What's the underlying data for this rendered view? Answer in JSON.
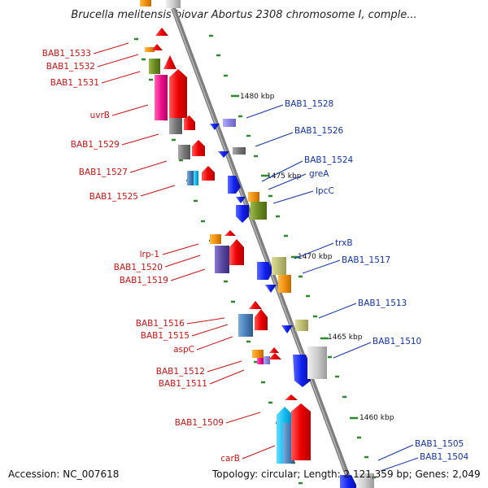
{
  "title": "Brucella melitensis biovar Abortus 2308 chromosome I, comple...",
  "footer": {
    "accession": "Accession: NC_007618",
    "topology": "Topology: circular; Length: 2,121,359 bp; Genes: 2,049"
  },
  "scale_labels": [
    "1480 kbp",
    "1475 kbp",
    "1470 kbp",
    "1465 kbp",
    "1460 kbp"
  ],
  "left_genes": [
    "BAB1_1533",
    "BAB1_1532",
    "BAB1_1531",
    "uvrB",
    "BAB1_1529",
    "BAB1_1527",
    "BAB1_1525",
    "lrp-1",
    "BAB1_1520",
    "BAB1_1519",
    "BAB1_1516",
    "BAB1_1515",
    "aspC",
    "BAB1_1512",
    "BAB1_1511",
    "BAB1_1509",
    "carB"
  ],
  "right_genes": [
    "BAB1_1528",
    "BAB1_1526",
    "BAB1_1524",
    "greA",
    "lpcC",
    "trxB",
    "BAB1_1517",
    "BAB1_1513",
    "BAB1_1510",
    "BAB1_1505",
    "BAB1_1504"
  ],
  "colors": {
    "forward_label": "#cc1111",
    "reverse_label": "#1133aa",
    "backbone": "#888888",
    "tick": "#2a8a2a"
  }
}
